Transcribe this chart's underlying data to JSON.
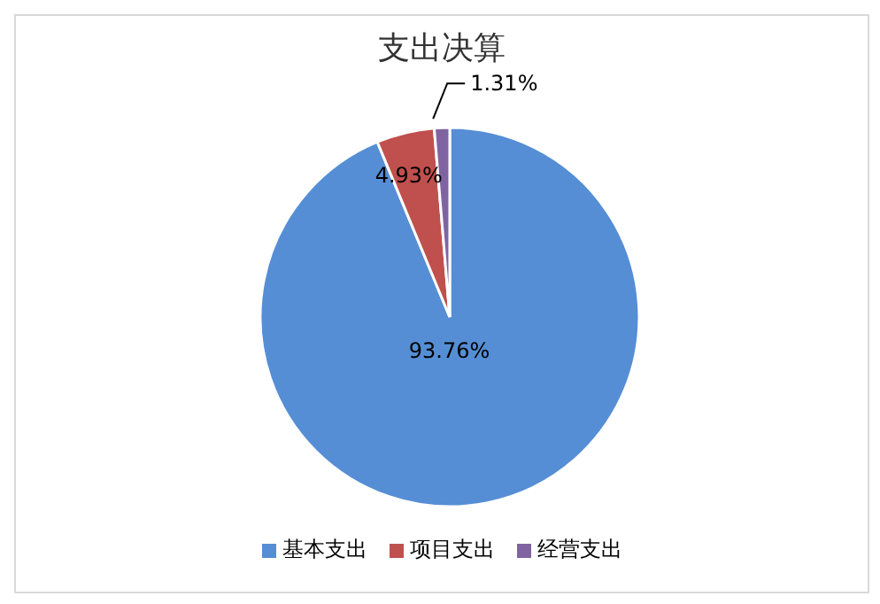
{
  "chart_data": {
    "type": "pie",
    "title": "支出决算",
    "categories": [
      "基本支出",
      "项目支出",
      "经营支出"
    ],
    "values": [
      93.76,
      4.93,
      1.31
    ],
    "colors": [
      "#558ed5",
      "#c0504d",
      "#8064a2"
    ],
    "value_labels": [
      "93.76%",
      "4.93%",
      "1.31%"
    ],
    "legend": "bottom"
  }
}
